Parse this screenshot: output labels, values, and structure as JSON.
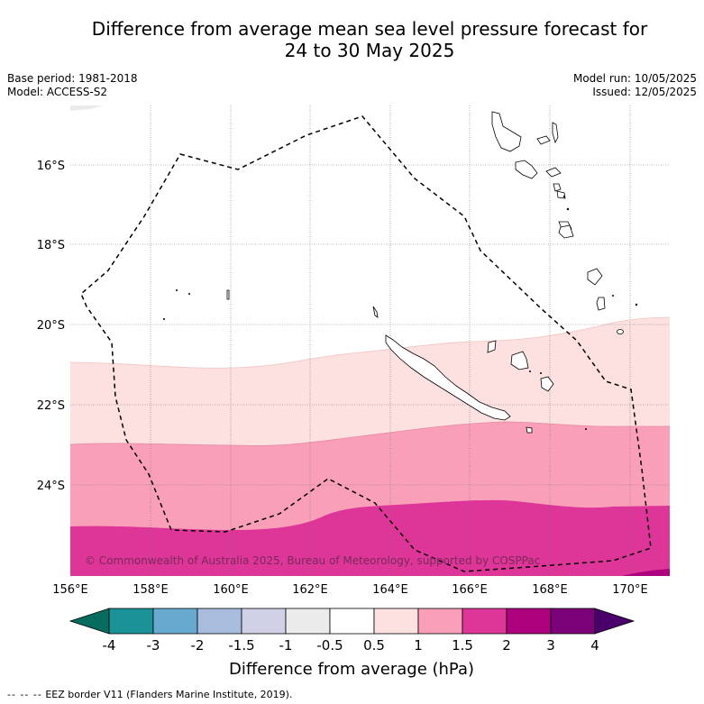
{
  "title": {
    "line1": "Difference from average mean sea level pressure forecast for",
    "line2": "24 to 30 May 2025"
  },
  "meta": {
    "base_period": "Base period: 1981-2018",
    "model": "Model: ACCESS-S2",
    "model_run": "Model run: 10/05/2025",
    "issued": "Issued: 12/05/2025"
  },
  "map": {
    "latitude_labels": [
      "16°S",
      "18°S",
      "20°S",
      "22°S",
      "24°S"
    ],
    "longitude_labels": [
      "156°E",
      "158°E",
      "160°E",
      "162°E",
      "164°E",
      "166°E",
      "168°E",
      "170°E"
    ],
    "copyright": "© Commonwealth of Australia 2025, Bureau of Meteorology, supported by COSPPac",
    "bands": [
      {
        "range": "0.5 to 1",
        "color": "#fde0e0"
      },
      {
        "range": "1 to 1.5",
        "color": "#f9a0b8"
      },
      {
        "range": "1.5 to 2",
        "color": "#de3598"
      }
    ]
  },
  "colorbar": {
    "title": "Difference from average (hPa)",
    "tick_labels": [
      "-4",
      "-3",
      "-2",
      "-1.5",
      "-1",
      "-0.5",
      "0.5",
      "1",
      "1.5",
      "2",
      "3",
      "4"
    ],
    "colors": [
      "#066d5e",
      "#1b9298",
      "#67a9cf",
      "#a8bcdd",
      "#d0d1e6",
      "#ebebeb",
      "#ffffff",
      "#fde0e0",
      "#f9a0b8",
      "#de3598",
      "#ae017e",
      "#7a0177",
      "#49006a"
    ]
  },
  "footer": {
    "dashes": "-- -- --",
    "text": "EEZ border V11 (Flanders Marine Institute, 2019)."
  }
}
